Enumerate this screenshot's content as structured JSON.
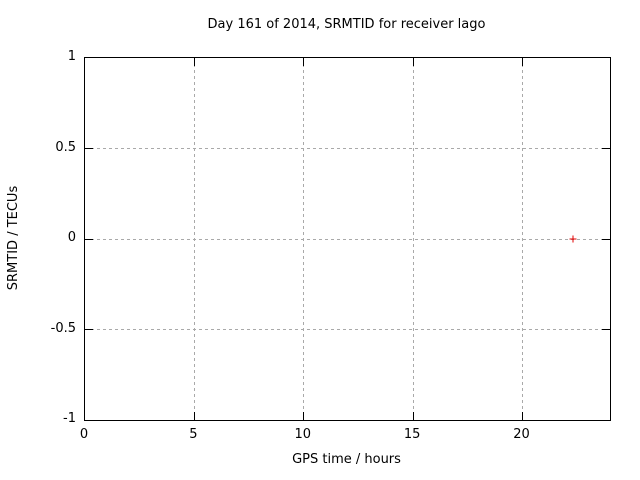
{
  "chart_data": {
    "type": "scatter",
    "title": "Day 161 of 2014, SRMTID for receiver lago",
    "xlabel": "GPS time / hours",
    "ylabel": "SRMTID / TECUs",
    "xlim": [
      0,
      24
    ],
    "ylim": [
      -1,
      1
    ],
    "xticks": [
      0,
      5,
      10,
      15,
      20
    ],
    "yticks": [
      1,
      0.5,
      0,
      -0.5,
      -1
    ],
    "grid": true,
    "legend": "none",
    "series": [
      {
        "name": "SRMTID",
        "marker": "plus",
        "color": "#e00000",
        "points": [
          {
            "x": 22.3,
            "y": 0.0
          }
        ]
      }
    ],
    "colors": {
      "background": "#ffffff",
      "axis": "#000000",
      "text": "#000000",
      "grid": "#a9a9a9"
    }
  }
}
